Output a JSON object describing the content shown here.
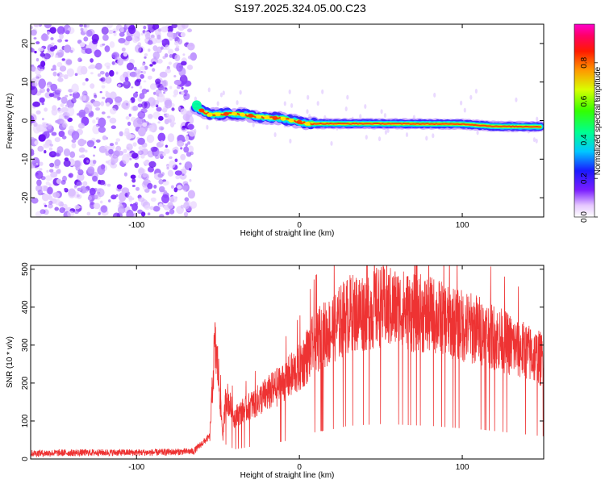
{
  "title": "S197.2025.324.05.00.C23",
  "chart_data": [
    {
      "type": "heatmap",
      "name": "spectrogram",
      "xlabel": "Height of straight line (km)",
      "ylabel": "Frequency (Hz)",
      "xlim": [
        -165,
        150
      ],
      "ylim": [
        -25,
        25
      ],
      "xticks": [
        -100,
        0,
        100
      ],
      "yticks": [
        -20,
        -10,
        0,
        10,
        20
      ],
      "colorbar": {
        "label": "Normalized spectral amplitude",
        "range": [
          0,
          1
        ],
        "ticks": [
          0.0,
          0.2,
          0.4,
          0.6,
          0.8
        ]
      },
      "noise_region_x": [
        -165,
        -65
      ],
      "signal_ridge": [
        {
          "x": -64,
          "y": 3.5
        },
        {
          "x": -55,
          "y": 1.5
        },
        {
          "x": -40,
          "y": 1.8
        },
        {
          "x": -25,
          "y": 1.0
        },
        {
          "x": -10,
          "y": 0.5
        },
        {
          "x": 5,
          "y": -0.8
        },
        {
          "x": 50,
          "y": -0.8
        },
        {
          "x": 100,
          "y": -0.9
        },
        {
          "x": 120,
          "y": -1.5
        },
        {
          "x": 148,
          "y": -1.6
        }
      ]
    },
    {
      "type": "line",
      "name": "snr",
      "xlabel": "Height of straight line (km)",
      "ylabel": "SNR (10 * v/v)",
      "xlim": [
        -165,
        150
      ],
      "ylim": [
        0,
        510
      ],
      "xticks": [
        -100,
        0,
        100
      ],
      "yticks": [
        0,
        100,
        200,
        300,
        400,
        500
      ],
      "color": "#ee3333",
      "series": [
        {
          "name": "SNR",
          "x": [
            -165,
            -150,
            -120,
            -90,
            -65,
            -55,
            -52,
            -50,
            -47,
            -45,
            -40,
            -30,
            -20,
            -10,
            0,
            10,
            20,
            30,
            40,
            50,
            60,
            70,
            80,
            90,
            100,
            110,
            120,
            130,
            140,
            150
          ],
          "values": [
            15,
            16,
            17,
            17,
            20,
            60,
            300,
            240,
            60,
            170,
            110,
            140,
            170,
            200,
            240,
            310,
            340,
            380,
            390,
            400,
            395,
            385,
            380,
            365,
            350,
            340,
            320,
            300,
            280,
            260
          ]
        }
      ]
    }
  ]
}
